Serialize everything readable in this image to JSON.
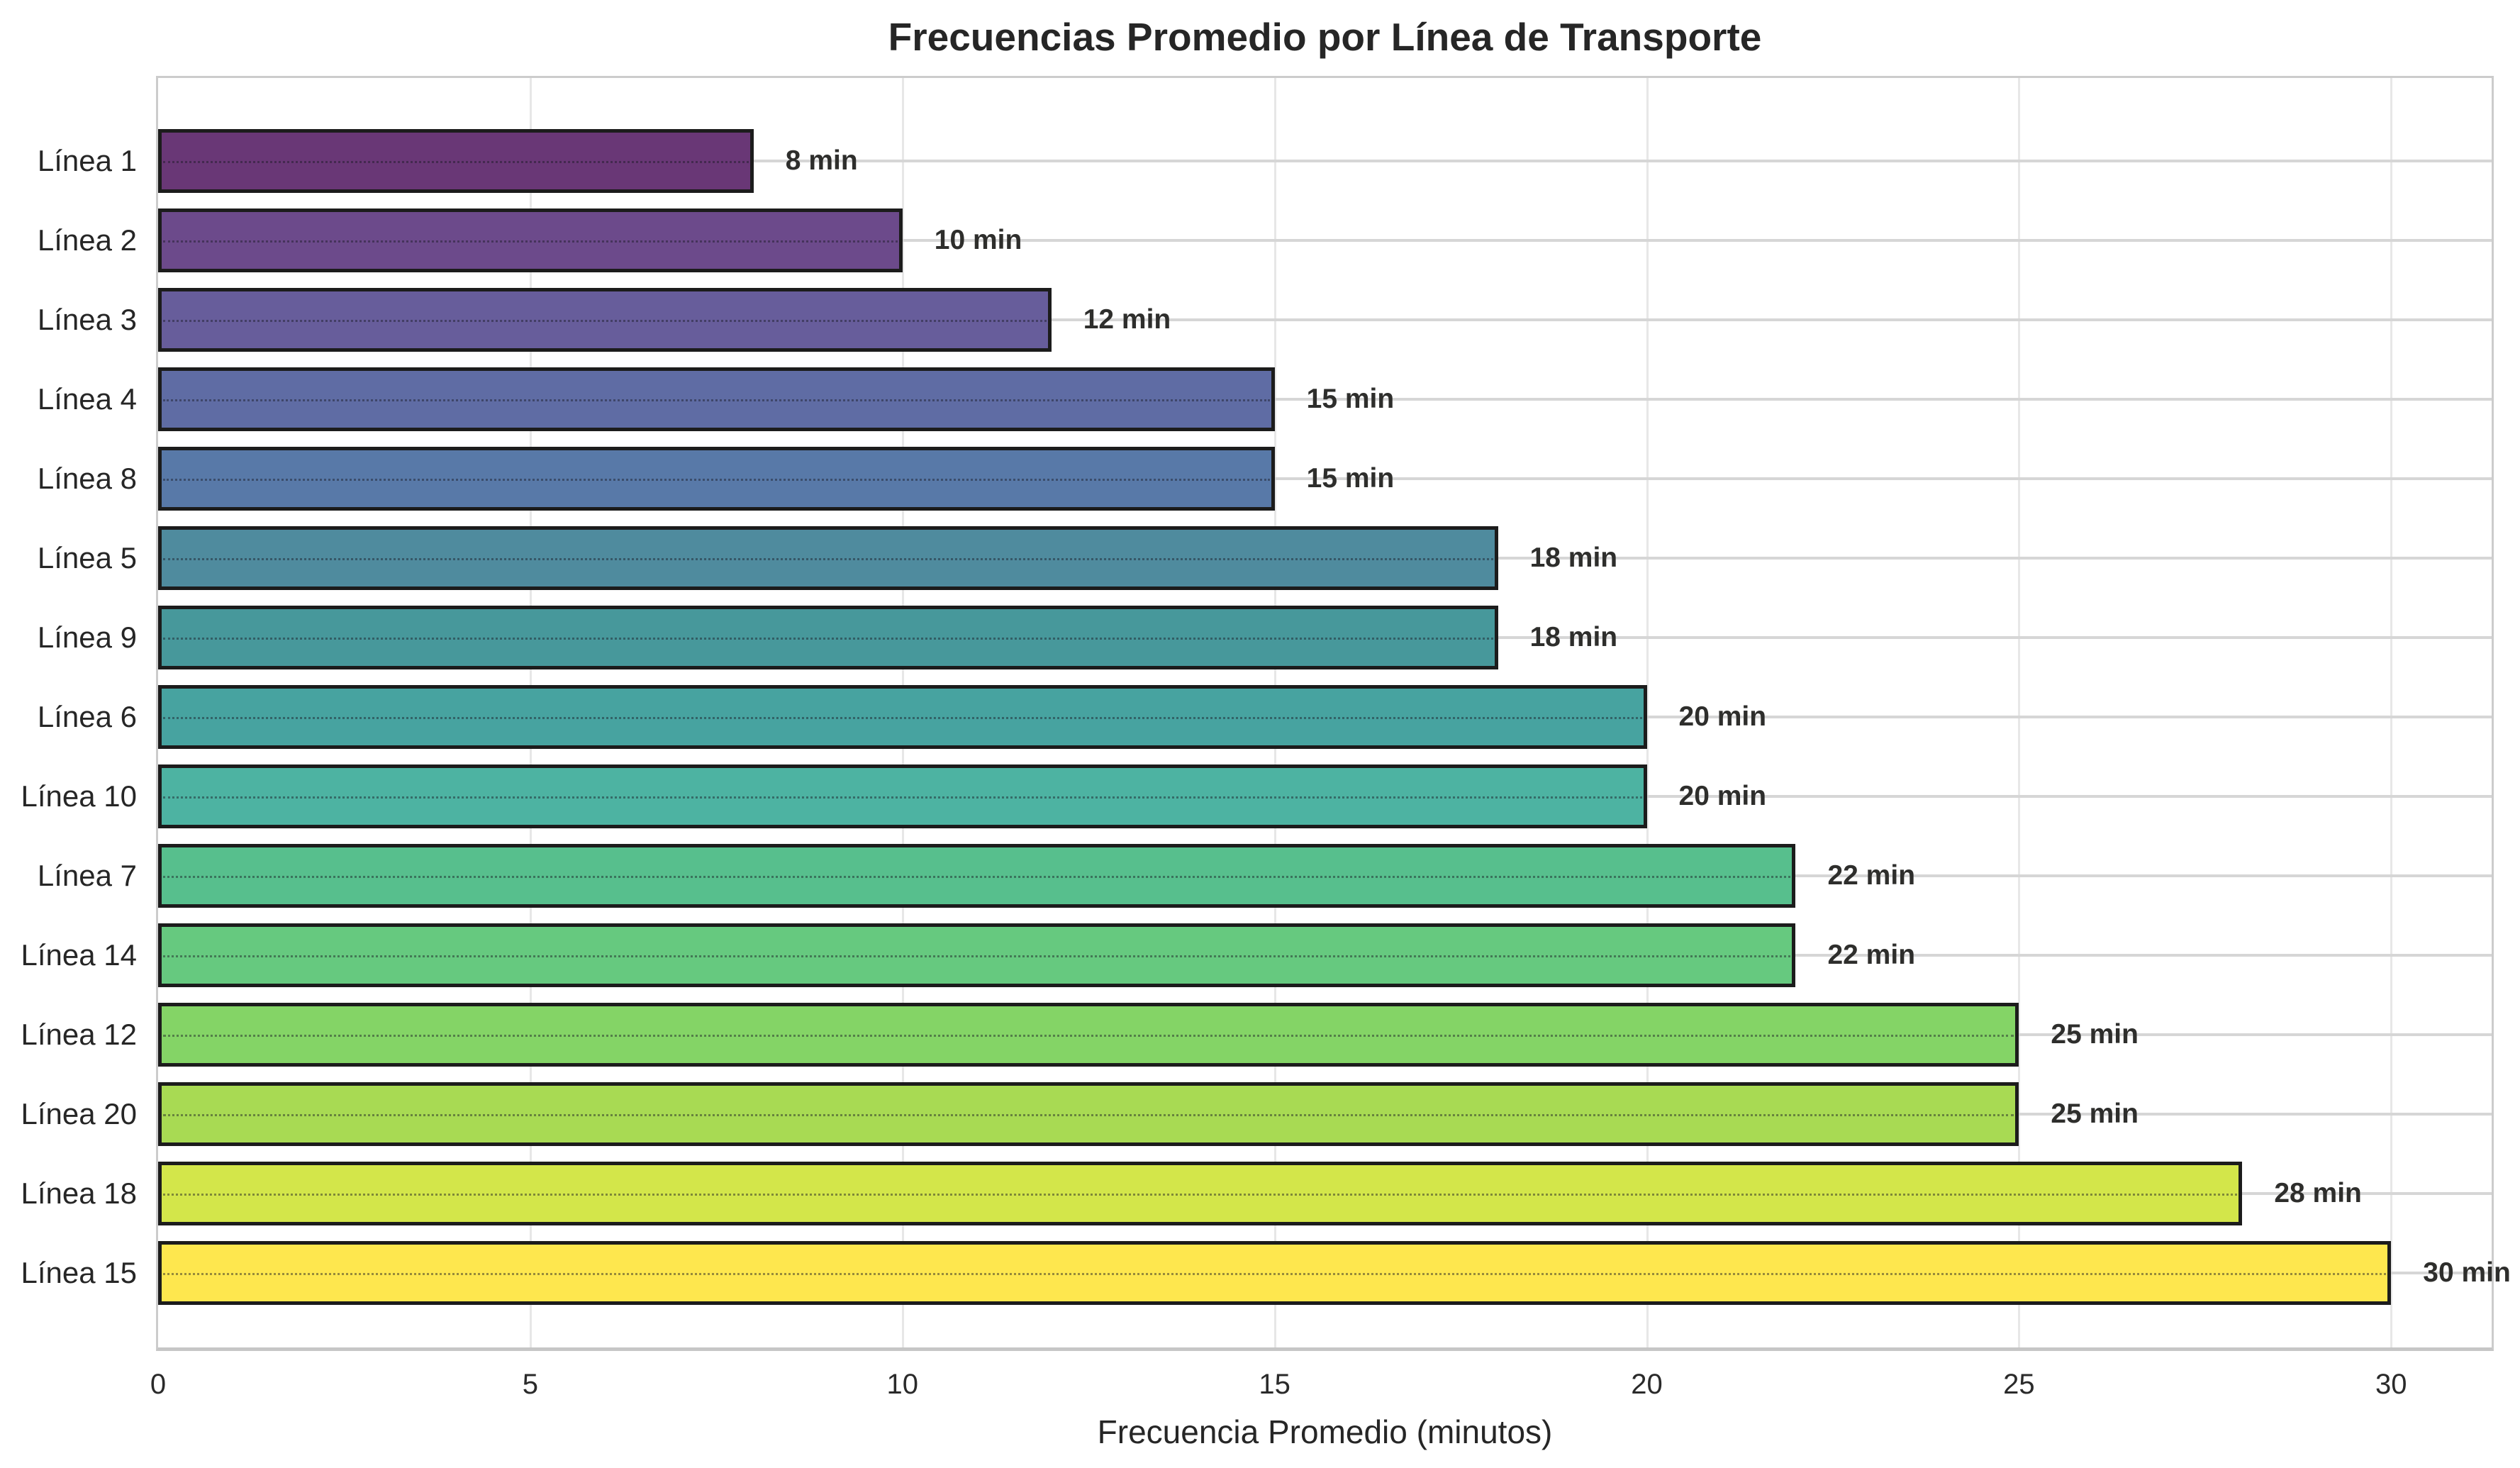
{
  "figure": {
    "title": "Frecuencias Promedio por Línea de Transporte",
    "xlabel": "Frecuencia Promedio (minutos)"
  },
  "chart_data": {
    "type": "bar",
    "orientation": "horizontal",
    "title": "Frecuencias Promedio por Línea de Transporte",
    "xlabel": "Frecuencia Promedio (minutos)",
    "ylabel": "",
    "categories": [
      "Línea 1",
      "Línea 2",
      "Línea 3",
      "Línea 4",
      "Línea 8",
      "Línea 5",
      "Línea 9",
      "Línea 6",
      "Línea 10",
      "Línea 7",
      "Línea 14",
      "Línea 12",
      "Línea 20",
      "Línea 18",
      "Línea 15"
    ],
    "values": [
      8,
      10,
      12,
      15,
      15,
      18,
      18,
      20,
      20,
      22,
      22,
      25,
      25,
      28,
      30
    ],
    "value_labels": [
      "8 min",
      "10 min",
      "12 min",
      "15 min",
      "15 min",
      "18 min",
      "18 min",
      "20 min",
      "20 min",
      "22 min",
      "22 min",
      "25 min",
      "25 min",
      "28 min",
      "30 min"
    ],
    "bar_colors": [
      "#693776",
      "#6c4a8b",
      "#675d9b",
      "#5f6ca4",
      "#5879a8",
      "#4f8b9e",
      "#47989b",
      "#47a3a0",
      "#4db3a2",
      "#57bf8d",
      "#66c97f",
      "#84d466",
      "#a8da53",
      "#d3e64a",
      "#fee74e"
    ],
    "bar_edge_color": "#1c1c1c",
    "x_ticks": [
      0,
      5,
      10,
      15,
      20,
      25,
      30
    ],
    "xlim": [
      0,
      31.35
    ],
    "grid": true,
    "legend": false,
    "background": "#ffffff",
    "gridline_color": "#d6d6d6"
  }
}
